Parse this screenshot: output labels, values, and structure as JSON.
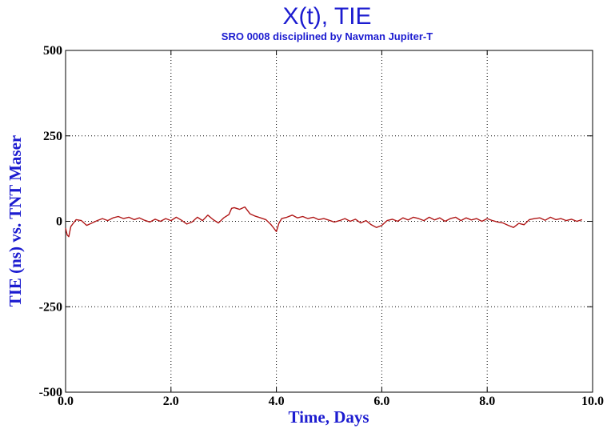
{
  "chart_data": {
    "type": "line",
    "title": "X(t), TIE",
    "subtitle": "SRO 0008 disciplined by Navman Jupiter-T",
    "xlabel": "Time, Days",
    "ylabel": "TIE (ns) vs. TNT Maser",
    "xlim": [
      0,
      10
    ],
    "ylim": [
      -500,
      500
    ],
    "xticks": [
      0,
      2,
      4,
      6,
      8,
      10
    ],
    "xtick_labels": [
      "0.0",
      "2.0",
      "4.0",
      "6.0",
      "8.0",
      "10.0"
    ],
    "yticks": [
      -500,
      -250,
      0,
      250,
      500
    ],
    "ytick_labels": [
      "-500",
      "-250",
      "0",
      "250",
      "500"
    ],
    "grid": true,
    "series": [
      {
        "color": "#b01818",
        "x": [
          0.0,
          0.03,
          0.06,
          0.1,
          0.15,
          0.2,
          0.3,
          0.4,
          0.5,
          0.6,
          0.7,
          0.8,
          0.9,
          1.0,
          1.1,
          1.2,
          1.3,
          1.4,
          1.5,
          1.6,
          1.7,
          1.8,
          1.9,
          2.0,
          2.1,
          2.2,
          2.3,
          2.4,
          2.5,
          2.6,
          2.7,
          2.8,
          2.9,
          3.0,
          3.1,
          3.15,
          3.2,
          3.3,
          3.4,
          3.5,
          3.6,
          3.7,
          3.8,
          3.9,
          3.95,
          4.0,
          4.05,
          4.1,
          4.2,
          4.3,
          4.4,
          4.5,
          4.6,
          4.7,
          4.8,
          4.9,
          5.0,
          5.1,
          5.2,
          5.3,
          5.4,
          5.5,
          5.6,
          5.7,
          5.8,
          5.9,
          6.0,
          6.1,
          6.2,
          6.3,
          6.4,
          6.5,
          6.6,
          6.7,
          6.8,
          6.9,
          7.0,
          7.1,
          7.2,
          7.3,
          7.4,
          7.5,
          7.6,
          7.7,
          7.8,
          7.9,
          8.0,
          8.1,
          8.2,
          8.3,
          8.4,
          8.5,
          8.6,
          8.7,
          8.8,
          8.9,
          9.0,
          9.1,
          9.2,
          9.3,
          9.4,
          9.5,
          9.6,
          9.7,
          9.8
        ],
        "y": [
          -20,
          -40,
          -45,
          -15,
          -5,
          5,
          2,
          -12,
          -5,
          2,
          8,
          2,
          10,
          14,
          8,
          12,
          5,
          10,
          3,
          -2,
          6,
          0,
          8,
          2,
          12,
          3,
          -8,
          -2,
          12,
          2,
          18,
          5,
          -5,
          10,
          20,
          38,
          40,
          35,
          42,
          22,
          15,
          10,
          5,
          -10,
          -20,
          -30,
          -5,
          8,
          12,
          18,
          10,
          14,
          8,
          12,
          5,
          8,
          3,
          -2,
          2,
          8,
          0,
          6,
          -5,
          2,
          -10,
          -18,
          -12,
          2,
          6,
          0,
          10,
          4,
          12,
          8,
          2,
          12,
          4,
          10,
          0,
          8,
          12,
          2,
          10,
          4,
          8,
          0,
          8,
          2,
          -2,
          -5,
          -12,
          -18,
          -6,
          -10,
          5,
          8,
          10,
          3,
          12,
          5,
          8,
          2,
          6,
          0,
          5
        ]
      }
    ]
  }
}
